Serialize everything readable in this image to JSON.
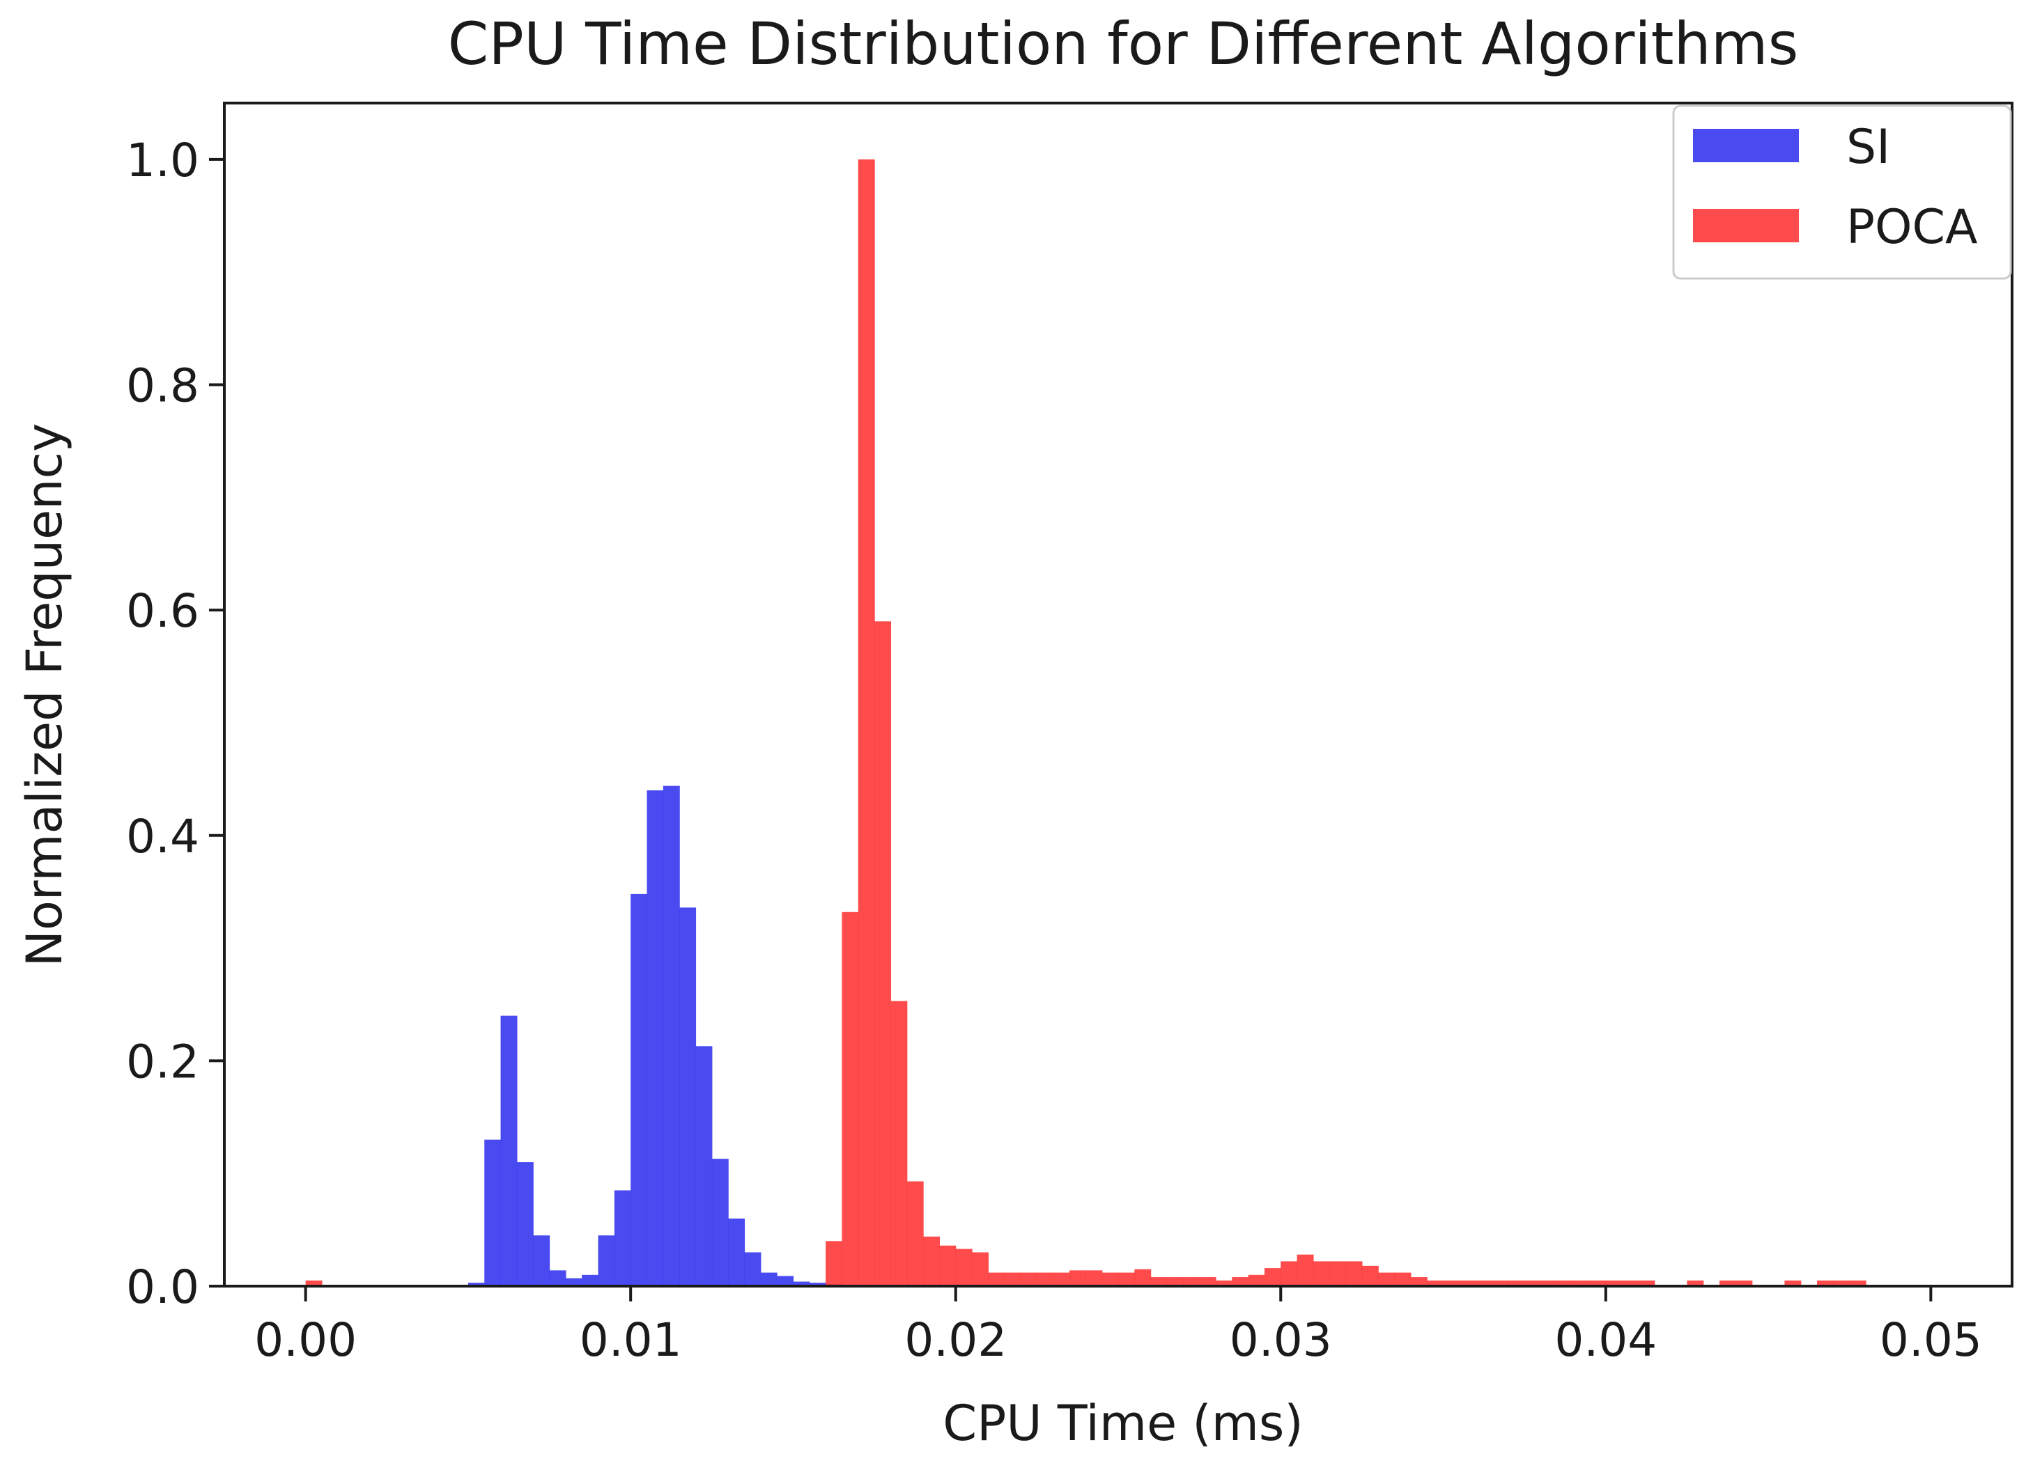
{
  "chart_data": {
    "type": "histogram",
    "title": "CPU Time Distribution for Different Algorithms",
    "xlabel": "CPU Time (ms)",
    "ylabel": "Normalized Frequency",
    "xlim": [
      -0.0025,
      0.0525
    ],
    "ylim": [
      0,
      1.05
    ],
    "x_ticks": [
      "0.00",
      "0.01",
      "0.02",
      "0.03",
      "0.04",
      "0.05"
    ],
    "x_tick_values": [
      0,
      0.01,
      0.02,
      0.03,
      0.04,
      0.05
    ],
    "y_ticks": [
      "0.0",
      "0.2",
      "0.4",
      "0.6",
      "0.8",
      "1.0"
    ],
    "y_tick_values": [
      0,
      0.2,
      0.4,
      0.6,
      0.8,
      1.0
    ],
    "grid": false,
    "legend_position": "top-right",
    "series": [
      {
        "name": "SI",
        "color": "#4040f0",
        "opacity": 0.95,
        "bin_width": 0.0005,
        "bins": [
          [
            0.005,
            0.003
          ],
          [
            0.0055,
            0.13
          ],
          [
            0.006,
            0.24
          ],
          [
            0.0065,
            0.11
          ],
          [
            0.007,
            0.045
          ],
          [
            0.0075,
            0.014
          ],
          [
            0.008,
            0.007
          ],
          [
            0.0085,
            0.01
          ],
          [
            0.009,
            0.045
          ],
          [
            0.0095,
            0.085
          ],
          [
            0.01,
            0.348
          ],
          [
            0.0105,
            0.44
          ],
          [
            0.011,
            0.444
          ],
          [
            0.0115,
            0.336
          ],
          [
            0.012,
            0.213
          ],
          [
            0.0125,
            0.113
          ],
          [
            0.013,
            0.06
          ],
          [
            0.0135,
            0.03
          ],
          [
            0.014,
            0.012
          ],
          [
            0.0145,
            0.009
          ],
          [
            0.015,
            0.004
          ],
          [
            0.0155,
            0.003
          ],
          [
            0.016,
            0.002
          ]
        ]
      },
      {
        "name": "POCA",
        "color": "#ff3c3c",
        "opacity": 0.92,
        "bin_width": 0.0005,
        "bins": [
          [
            0.0,
            0.005
          ],
          [
            0.016,
            0.04
          ],
          [
            0.0165,
            0.332
          ],
          [
            0.017,
            1.0
          ],
          [
            0.0175,
            0.59
          ],
          [
            0.018,
            0.253
          ],
          [
            0.0185,
            0.093
          ],
          [
            0.019,
            0.044
          ],
          [
            0.0195,
            0.036
          ],
          [
            0.02,
            0.033
          ],
          [
            0.0205,
            0.03
          ],
          [
            0.021,
            0.012
          ],
          [
            0.0215,
            0.012
          ],
          [
            0.022,
            0.012
          ],
          [
            0.0225,
            0.012
          ],
          [
            0.023,
            0.012
          ],
          [
            0.0235,
            0.014
          ],
          [
            0.024,
            0.014
          ],
          [
            0.0245,
            0.012
          ],
          [
            0.025,
            0.012
          ],
          [
            0.0255,
            0.015
          ],
          [
            0.026,
            0.008
          ],
          [
            0.0265,
            0.008
          ],
          [
            0.027,
            0.008
          ],
          [
            0.0275,
            0.008
          ],
          [
            0.028,
            0.005
          ],
          [
            0.0285,
            0.008
          ],
          [
            0.029,
            0.01
          ],
          [
            0.0295,
            0.016
          ],
          [
            0.03,
            0.022
          ],
          [
            0.0305,
            0.028
          ],
          [
            0.031,
            0.022
          ],
          [
            0.0315,
            0.022
          ],
          [
            0.032,
            0.022
          ],
          [
            0.0325,
            0.018
          ],
          [
            0.033,
            0.012
          ],
          [
            0.0335,
            0.012
          ],
          [
            0.034,
            0.008
          ],
          [
            0.0345,
            0.005
          ],
          [
            0.035,
            0.005
          ],
          [
            0.0355,
            0.005
          ],
          [
            0.036,
            0.005
          ],
          [
            0.0365,
            0.005
          ],
          [
            0.037,
            0.005
          ],
          [
            0.0375,
            0.005
          ],
          [
            0.038,
            0.005
          ],
          [
            0.0385,
            0.005
          ],
          [
            0.039,
            0.005
          ],
          [
            0.0395,
            0.005
          ],
          [
            0.04,
            0.005
          ],
          [
            0.0405,
            0.005
          ],
          [
            0.041,
            0.005
          ],
          [
            0.0425,
            0.005
          ],
          [
            0.0435,
            0.005
          ],
          [
            0.044,
            0.005
          ],
          [
            0.0455,
            0.005
          ],
          [
            0.0465,
            0.005
          ],
          [
            0.047,
            0.005
          ],
          [
            0.0475,
            0.005
          ]
        ]
      }
    ]
  }
}
